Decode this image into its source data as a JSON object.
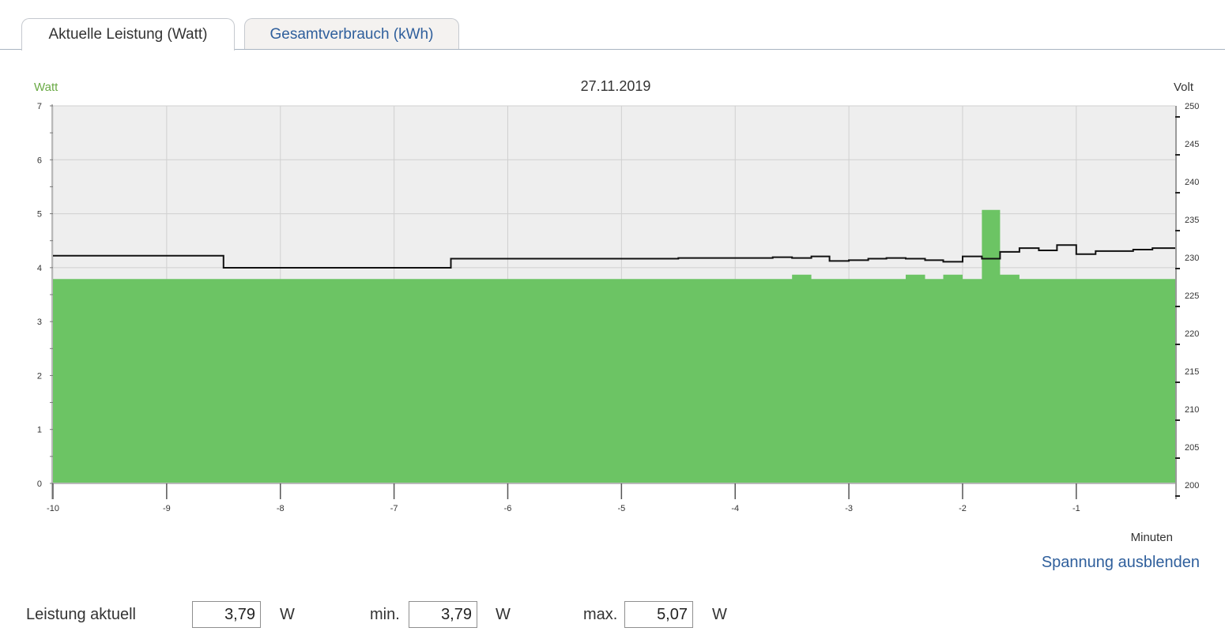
{
  "tabs": [
    {
      "label": "Aktuelle Leistung (Watt)",
      "active": true
    },
    {
      "label": "Gesamtverbrauch (kWh)",
      "active": false
    }
  ],
  "chart_data": {
    "type": "area",
    "title": "27.11.2019",
    "xlabel": "Minuten",
    "ylabel_left": "Watt",
    "ylabel_right": "Volt",
    "xlim": [
      -10,
      -0.13
    ],
    "ylim_left": [
      0,
      7
    ],
    "ylim_right": [
      200,
      250
    ],
    "x_ticks": [
      -10,
      -9,
      -8,
      -7,
      -6,
      -5,
      -4,
      -3,
      -2,
      -1
    ],
    "y_ticks_left": [
      0,
      1,
      2,
      3,
      4,
      5,
      6,
      7
    ],
    "y_ticks_right": [
      200,
      205,
      210,
      215,
      220,
      225,
      230,
      235,
      240,
      245,
      250
    ],
    "grid": true,
    "colors": {
      "power": "#6cc464",
      "voltage": "#111111",
      "plot_bg": "#eeeeee",
      "watt_label": "#6aaa45"
    },
    "series": [
      {
        "axis": "left",
        "shape": "step",
        "x": [
          -10,
          -3.5,
          -3.33,
          -2.5,
          -2.33,
          -2.17,
          -2.0,
          -1.83,
          -1.67,
          -1.5,
          -1.33,
          -0.13
        ],
        "y": [
          3.79,
          3.87,
          3.79,
          3.87,
          3.79,
          3.87,
          3.79,
          5.07,
          3.87,
          3.79,
          3.79,
          3.79
        ]
      },
      {
        "axis": "right",
        "shape": "step",
        "x": [
          -10,
          -8.5,
          -6.5,
          -4.5,
          -3.67,
          -3.5,
          -3.33,
          -3.17,
          -3.0,
          -2.83,
          -2.67,
          -2.5,
          -2.33,
          -2.17,
          -2.0,
          -1.83,
          -1.67,
          -1.5,
          -1.33,
          -1.17,
          -1.0,
          -0.83,
          -0.67,
          -0.5,
          -0.33,
          -0.13
        ],
        "y": [
          231.7,
          230.1,
          231.3,
          231.4,
          231.5,
          231.4,
          231.6,
          231.0,
          231.1,
          231.3,
          231.4,
          231.3,
          231.1,
          230.9,
          231.6,
          231.3,
          232.2,
          232.7,
          232.4,
          233.1,
          231.9,
          232.3,
          232.3,
          232.5,
          232.7,
          232.8
        ]
      }
    ]
  },
  "link": {
    "label": "Spannung ausblenden"
  },
  "stats": {
    "current_label": "Leistung aktuell",
    "current_value": "3,79",
    "min_label": "min.",
    "min_value": "3,79",
    "max_label": "max.",
    "max_value": "5,07",
    "unit": "W"
  }
}
